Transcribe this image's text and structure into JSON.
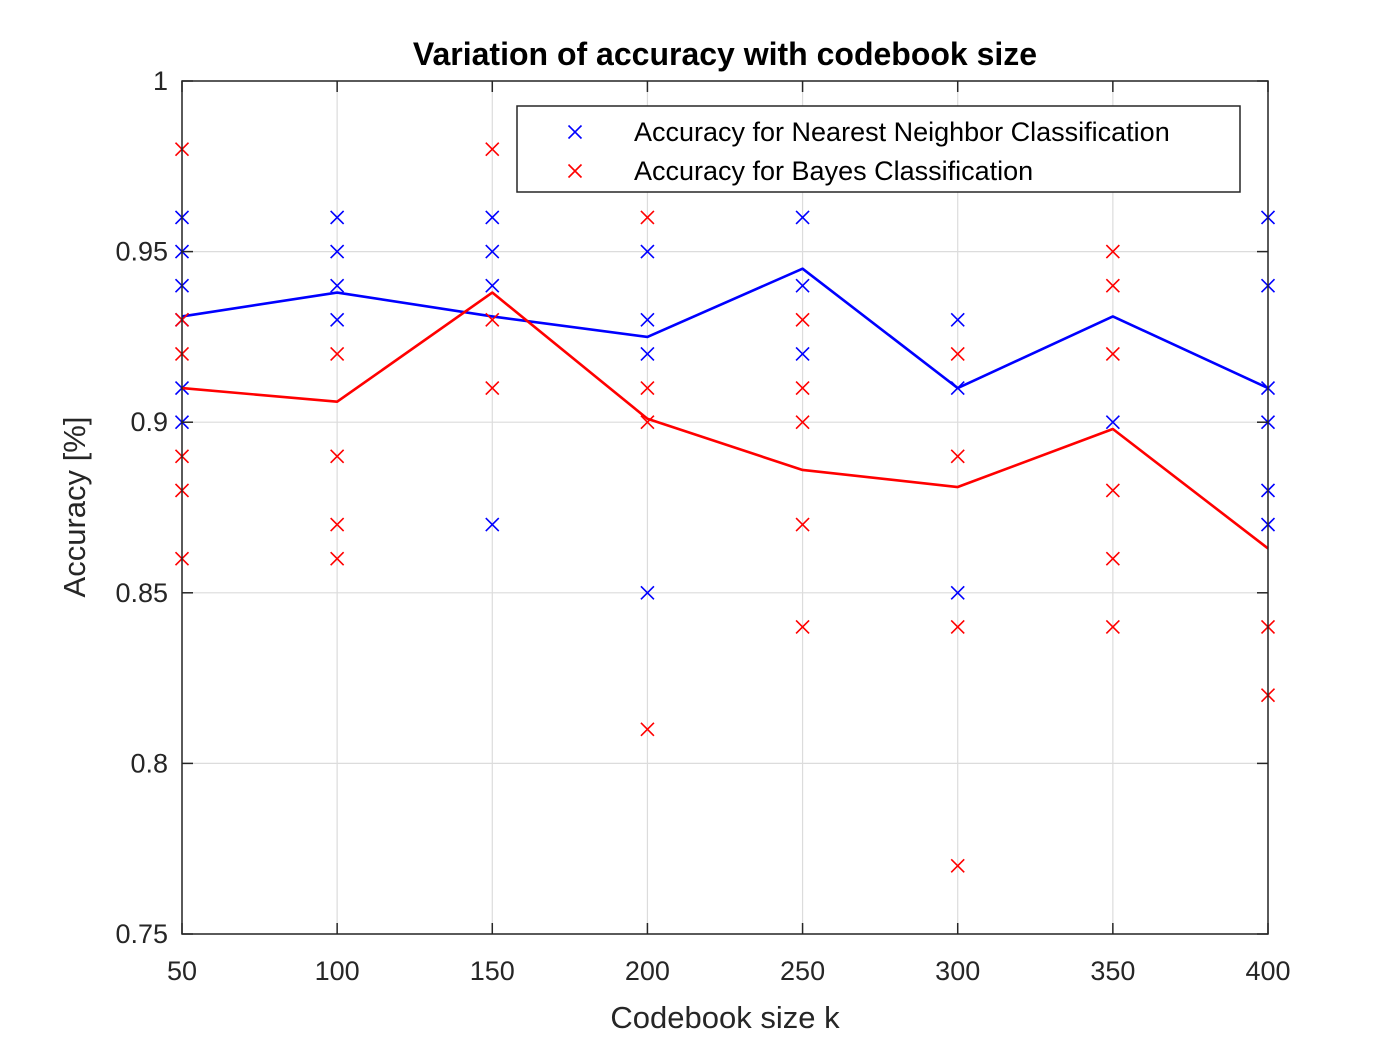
{
  "chart_data": {
    "type": "scatter",
    "title": "Variation of accuracy with codebook size",
    "xlabel": "Codebook size k",
    "ylabel": "Accuracy [%]",
    "xlim": [
      50,
      400
    ],
    "ylim": [
      0.75,
      1
    ],
    "x_ticks": [
      50,
      100,
      150,
      200,
      250,
      300,
      350,
      400
    ],
    "y_ticks": [
      0.75,
      0.8,
      0.85,
      0.9,
      0.95,
      1
    ],
    "x_tick_labels": [
      "50",
      "100",
      "150",
      "200",
      "250",
      "300",
      "350",
      "400"
    ],
    "y_tick_labels": [
      "0.75",
      "0.8",
      "0.85",
      "0.9",
      "0.95",
      "1"
    ],
    "grid": true,
    "legend_position": "top-right",
    "series": [
      {
        "name": "Accuracy for Nearest Neighbor Classification",
        "color": "#0000ff",
        "marker": "x",
        "points": [
          [
            50,
            0.96
          ],
          [
            50,
            0.95
          ],
          [
            50,
            0.94
          ],
          [
            50,
            0.93
          ],
          [
            50,
            0.91
          ],
          [
            50,
            0.9
          ],
          [
            100,
            0.96
          ],
          [
            100,
            0.95
          ],
          [
            100,
            0.94
          ],
          [
            100,
            0.93
          ],
          [
            150,
            0.96
          ],
          [
            150,
            0.95
          ],
          [
            150,
            0.94
          ],
          [
            150,
            0.87
          ],
          [
            200,
            0.95
          ],
          [
            200,
            0.93
          ],
          [
            200,
            0.92
          ],
          [
            200,
            0.85
          ],
          [
            250,
            0.96
          ],
          [
            250,
            0.94
          ],
          [
            250,
            0.92
          ],
          [
            300,
            0.93
          ],
          [
            300,
            0.91
          ],
          [
            300,
            0.85
          ],
          [
            350,
            0.9
          ],
          [
            400,
            0.96
          ],
          [
            400,
            0.94
          ],
          [
            400,
            0.91
          ],
          [
            400,
            0.9
          ],
          [
            400,
            0.88
          ],
          [
            400,
            0.87
          ]
        ],
        "mean_line": {
          "x": [
            50,
            100,
            150,
            200,
            250,
            300,
            350,
            400
          ],
          "y": [
            0.931,
            0.938,
            0.931,
            0.925,
            0.945,
            0.91,
            0.931,
            0.91
          ]
        }
      },
      {
        "name": "Accuracy for Bayes Classification",
        "color": "#ff0000",
        "marker": "x",
        "points": [
          [
            50,
            0.98
          ],
          [
            50,
            0.93
          ],
          [
            50,
            0.92
          ],
          [
            50,
            0.89
          ],
          [
            50,
            0.88
          ],
          [
            50,
            0.86
          ],
          [
            100,
            0.92
          ],
          [
            100,
            0.89
          ],
          [
            100,
            0.87
          ],
          [
            100,
            0.86
          ],
          [
            150,
            0.98
          ],
          [
            150,
            0.93
          ],
          [
            150,
            0.91
          ],
          [
            200,
            0.96
          ],
          [
            200,
            0.91
          ],
          [
            200,
            0.9
          ],
          [
            200,
            0.81
          ],
          [
            250,
            0.93
          ],
          [
            250,
            0.91
          ],
          [
            250,
            0.9
          ],
          [
            250,
            0.87
          ],
          [
            250,
            0.84
          ],
          [
            300,
            0.92
          ],
          [
            300,
            0.89
          ],
          [
            300,
            0.84
          ],
          [
            300,
            0.77
          ],
          [
            350,
            0.95
          ],
          [
            350,
            0.94
          ],
          [
            350,
            0.92
          ],
          [
            350,
            0.88
          ],
          [
            350,
            0.86
          ],
          [
            350,
            0.84
          ],
          [
            400,
            0.84
          ],
          [
            400,
            0.82
          ]
        ],
        "mean_line": {
          "x": [
            50,
            100,
            150,
            200,
            250,
            300,
            350,
            400
          ],
          "y": [
            0.91,
            0.906,
            0.938,
            0.901,
            0.886,
            0.881,
            0.898,
            0.863
          ]
        }
      }
    ]
  }
}
